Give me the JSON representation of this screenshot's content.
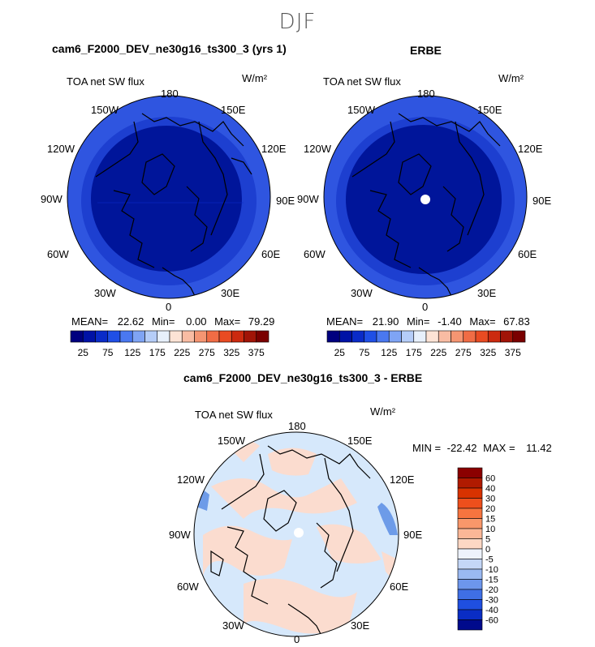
{
  "figure_title": "DJF",
  "colors": {
    "ocean_dark": "#00159a",
    "mid_blue": "#1d3fd0",
    "outer_blue": "#2f55e0",
    "diff_light_blue": "#d6e8fb",
    "diff_light_red": "#fbdccf",
    "diff_blue_patch": "#6d9be8",
    "land_outline": "#000000"
  },
  "icons": {
    "missing_data": "white-dot"
  },
  "panels": {
    "model": {
      "title": "cam6_F2000_DEV_ne30g16_ts300_3 (yrs 1)",
      "variable": "TOA net SW flux",
      "units": "W/m²",
      "stats": {
        "mean_label": "MEAN=",
        "mean": "22.62",
        "min_label": "Min=",
        "min": "0.00",
        "max_label": "Max=",
        "max": "79.29"
      },
      "lon_labels": {
        "top": "180",
        "n150w": "150W",
        "n150e": "150E",
        "n120w": "120W",
        "n120e": "120E",
        "n90w": "90W",
        "n90e": "90E",
        "n60w": "60W",
        "n60e": "60E",
        "n30w": "30W",
        "n30e": "30E",
        "bottom": "0"
      }
    },
    "obs": {
      "title": "ERBE",
      "variable": "TOA net SW flux",
      "units": "W/m²",
      "stats": {
        "mean_label": "MEAN=",
        "mean": "21.90",
        "min_label": "Min=",
        "min": "-1.40",
        "max_label": "Max=",
        "max": "67.83"
      },
      "lon_labels": {
        "top": "180",
        "n150w": "150W",
        "n150e": "150E",
        "n120w": "120W",
        "n120e": "120E",
        "n90w": "90W",
        "n90e": "90E",
        "n60w": "60W",
        "n60e": "60E",
        "n30w": "30W",
        "n30e": "30E",
        "bottom": "0"
      }
    },
    "diff": {
      "title": "cam6_F2000_DEV_ne30g16_ts300_3 - ERBE",
      "variable": "TOA net SW flux",
      "units": "W/m²",
      "stats": {
        "min_label": "MIN =",
        "min": "-22.42",
        "max_label": "MAX =",
        "max": "11.42"
      },
      "lon_labels": {
        "top": "180",
        "n150w": "150W",
        "n150e": "150E",
        "n120w": "120W",
        "n120e": "120E",
        "n90w": "90W",
        "n90e": "90E",
        "n60w": "60W",
        "n60e": "60E",
        "n30w": "30W",
        "n30e": "30E",
        "bottom": "0"
      }
    }
  },
  "colorbar_horizontal": {
    "colors": [
      "#00007f",
      "#0012a6",
      "#0a2bc8",
      "#1f4fe6",
      "#4a78f0",
      "#7fa4f4",
      "#b5cdf8",
      "#e7f0fb",
      "#fde3d5",
      "#f9bca3",
      "#f59572",
      "#f06c45",
      "#e94b22",
      "#cc2a0f",
      "#a11407",
      "#7a0000"
    ],
    "labels": [
      "25",
      "75",
      "125",
      "175",
      "225",
      "275",
      "325",
      "375"
    ]
  },
  "colorbar_vertical": {
    "colors": [
      "#8b0000",
      "#b01a00",
      "#d83200",
      "#ed4f1c",
      "#f6743f",
      "#f9976a",
      "#fbb797",
      "#fdd7c4",
      "#edf2fc",
      "#c4d6f7",
      "#9ab9f2",
      "#6d96ec",
      "#3f6fe5",
      "#1f4fe0",
      "#0a2dc4",
      "#000a8c"
    ],
    "labels": [
      "60",
      "40",
      "30",
      "20",
      "15",
      "10",
      "5",
      "0",
      "-5",
      "-10",
      "-15",
      "-20",
      "-30",
      "-40",
      "-60"
    ]
  }
}
